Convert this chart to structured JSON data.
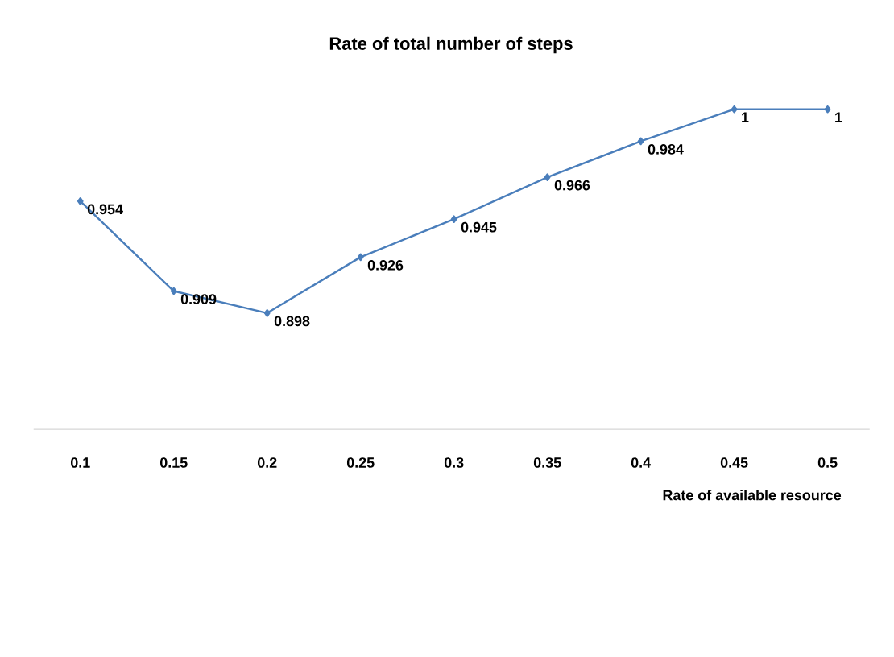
{
  "chart_data": {
    "type": "line",
    "title": "Rate of total number of steps",
    "xlabel": "Rate of available resource",
    "categories": [
      "0.1",
      "0.15",
      "0.2",
      "0.25",
      "0.3",
      "0.35",
      "0.4",
      "0.45",
      "0.5"
    ],
    "series": [
      {
        "color": "#4a7ebb",
        "values": [
          0.954,
          0.909,
          0.898,
          0.926,
          0.945,
          0.966,
          0.984,
          1,
          1
        ]
      }
    ],
    "tick_labels": "x",
    "data_labels": true,
    "marker": "diamond",
    "line_style": "solid"
  }
}
